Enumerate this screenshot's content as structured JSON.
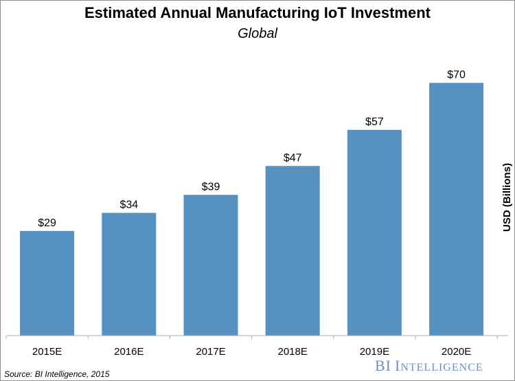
{
  "chart_data": {
    "type": "bar",
    "title": "Estimated Annual Manufacturing IoT Investment",
    "subtitle": "Global",
    "ylabel": "USD (Billions)",
    "xlabel": "",
    "categories": [
      "2015E",
      "2016E",
      "2017E",
      "2018E",
      "2019E",
      "2020E"
    ],
    "values": [
      29,
      34,
      39,
      47,
      57,
      70
    ],
    "data_labels": [
      "$29",
      "$34",
      "$39",
      "$47",
      "$57",
      "$70"
    ],
    "ylim": [
      0,
      75
    ],
    "grid": false,
    "bar_color": "#5592c1"
  },
  "footer": {
    "source": "Source: BI Intelligence, 2015",
    "brand": "BI Intelligence"
  }
}
